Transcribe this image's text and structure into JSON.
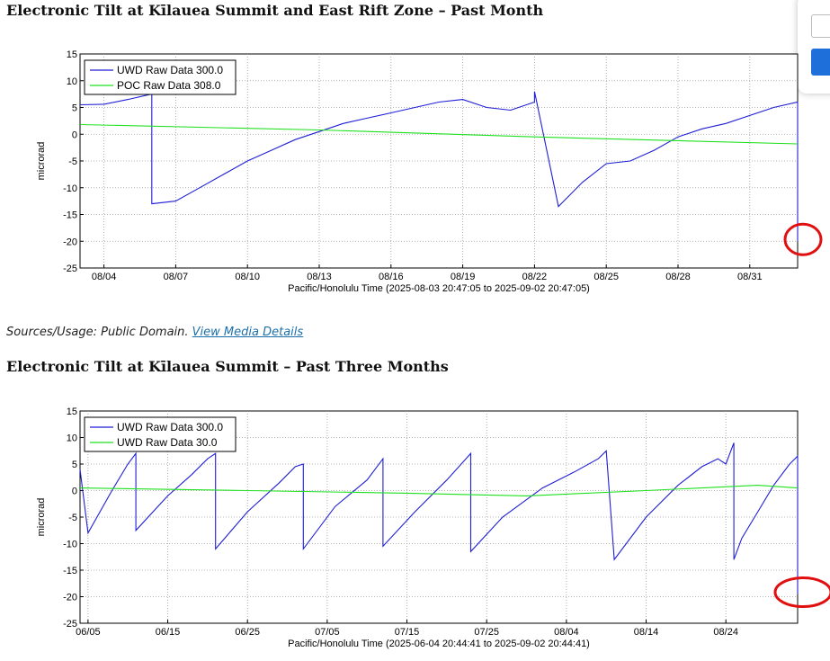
{
  "charts_page": {
    "title1": "Electronic Tilt at Kīlauea Summit and East Rift Zone – Past Month",
    "title2": "Electronic Tilt at Kīlauea Summit – Past Three Months",
    "sources_prefix": "Sources/Usage: Public Domain.",
    "sources_link": "View Media Details"
  },
  "colors": {
    "blue_series": "#1f1fd6",
    "green_series": "#1fe01f",
    "highlight": "#e01010",
    "link": "#1a6faa",
    "side_button": "#1e6fd9"
  },
  "chart_data": [
    {
      "type": "line",
      "title": "Electronic Tilt at Kīlauea Summit and East Rift Zone – Past Month",
      "xlabel": "Pacific/Honolulu Time (2025-08-03 20:47:05 to 2025-09-02 20:47:05)",
      "ylabel": "microrad",
      "xlim": [
        "2025-08-03",
        "2025-09-02"
      ],
      "ylim": [
        -25,
        15
      ],
      "x_ticks": [
        "08/04",
        "08/07",
        "08/10",
        "08/13",
        "08/16",
        "08/19",
        "08/22",
        "08/25",
        "08/28",
        "08/31"
      ],
      "y_ticks": [
        "15",
        "10",
        "5",
        "0",
        "-5",
        "-10",
        "-15",
        "-20",
        "-25"
      ],
      "grid": true,
      "legend_position": "top-left",
      "annotation": "red circle around final data point",
      "series": [
        {
          "name": "UWD Raw Data 300.0",
          "color": "#1f1fd6",
          "points": [
            [
              "2025-08-03",
              5.5
            ],
            [
              "2025-08-04",
              5.6
            ],
            [
              "2025-08-05",
              6.5
            ],
            [
              "2025-08-06",
              7.5
            ],
            [
              "2025-08-06",
              -13.0
            ],
            [
              "2025-08-07",
              -12.5
            ],
            [
              "2025-08-08",
              -10.0
            ],
            [
              "2025-08-09",
              -7.5
            ],
            [
              "2025-08-10",
              -5.0
            ],
            [
              "2025-08-11",
              -3.0
            ],
            [
              "2025-08-12",
              -1.0
            ],
            [
              "2025-08-13",
              0.5
            ],
            [
              "2025-08-14",
              2.0
            ],
            [
              "2025-08-15",
              3.0
            ],
            [
              "2025-08-16",
              4.0
            ],
            [
              "2025-08-17",
              5.0
            ],
            [
              "2025-08-18",
              6.0
            ],
            [
              "2025-08-19",
              6.5
            ],
            [
              "2025-08-20",
              5.0
            ],
            [
              "2025-08-21",
              4.5
            ],
            [
              "2025-08-22",
              6.0
            ],
            [
              "2025-08-22",
              8.0
            ],
            [
              "2025-08-23",
              -13.5
            ],
            [
              "2025-08-24",
              -9.0
            ],
            [
              "2025-08-25",
              -5.5
            ],
            [
              "2025-08-26",
              -5.0
            ],
            [
              "2025-08-27",
              -3.0
            ],
            [
              "2025-08-28",
              -0.5
            ],
            [
              "2025-08-29",
              1.0
            ],
            [
              "2025-08-30",
              2.0
            ],
            [
              "2025-08-31",
              3.5
            ],
            [
              "2025-09-01",
              5.0
            ],
            [
              "2025-09-02",
              6.0
            ],
            [
              "2025-09-02",
              -20.0
            ]
          ]
        },
        {
          "name": "POC Raw Data 308.0",
          "color": "#1fe01f",
          "points": [
            [
              "2025-08-03",
              1.8
            ],
            [
              "2025-08-13",
              0.8
            ],
            [
              "2025-08-22",
              -0.5
            ],
            [
              "2025-09-02",
              -1.8
            ]
          ]
        }
      ]
    },
    {
      "type": "line",
      "title": "Electronic Tilt at Kīlauea Summit – Past Three Months",
      "xlabel": "Pacific/Honolulu Time (2025-06-04 20:44:41 to 2025-09-02 20:44:41)",
      "ylabel": "microrad",
      "xlim": [
        "2025-06-04",
        "2025-09-02"
      ],
      "ylim": [
        -25,
        15
      ],
      "x_ticks": [
        "06/05",
        "06/15",
        "06/25",
        "07/05",
        "07/15",
        "07/25",
        "08/04",
        "08/14",
        "08/24"
      ],
      "y_ticks": [
        "15",
        "10",
        "5",
        "0",
        "-5",
        "-10",
        "-15",
        "-20",
        "-25"
      ],
      "grid": true,
      "legend_position": "top-left",
      "annotation": "red circle around final data point",
      "series": [
        {
          "name": "UWD Raw Data 300.0",
          "color": "#1f1fd6",
          "points": [
            [
              "2025-06-04",
              4.0
            ],
            [
              "2025-06-05",
              -8.0
            ],
            [
              "2025-06-08",
              0.0
            ],
            [
              "2025-06-10",
              5.0
            ],
            [
              "2025-06-11",
              7.0
            ],
            [
              "2025-06-11",
              -7.5
            ],
            [
              "2025-06-15",
              -1.0
            ],
            [
              "2025-06-18",
              3.0
            ],
            [
              "2025-06-20",
              6.0
            ],
            [
              "2025-06-21",
              7.0
            ],
            [
              "2025-06-21",
              -11.0
            ],
            [
              "2025-06-25",
              -4.0
            ],
            [
              "2025-06-29",
              1.5
            ],
            [
              "2025-07-01",
              4.5
            ],
            [
              "2025-07-02",
              5.0
            ],
            [
              "2025-07-02",
              -11.0
            ],
            [
              "2025-07-06",
              -3.0
            ],
            [
              "2025-07-10",
              2.0
            ],
            [
              "2025-07-12",
              6.0
            ],
            [
              "2025-07-12",
              -10.5
            ],
            [
              "2025-07-16",
              -4.0
            ],
            [
              "2025-07-20",
              2.0
            ],
            [
              "2025-07-23",
              7.0
            ],
            [
              "2025-07-23",
              -11.5
            ],
            [
              "2025-07-27",
              -5.0
            ],
            [
              "2025-08-01",
              0.5
            ],
            [
              "2025-08-05",
              3.5
            ],
            [
              "2025-08-08",
              6.0
            ],
            [
              "2025-08-09",
              7.5
            ],
            [
              "2025-08-10",
              -13.0
            ],
            [
              "2025-08-14",
              -5.0
            ],
            [
              "2025-08-18",
              1.0
            ],
            [
              "2025-08-21",
              4.5
            ],
            [
              "2025-08-23",
              6.0
            ],
            [
              "2025-08-24",
              5.0
            ],
            [
              "2025-08-25",
              9.0
            ],
            [
              "2025-08-25",
              -13.0
            ],
            [
              "2025-08-26",
              -9.0
            ],
            [
              "2025-08-28",
              -4.0
            ],
            [
              "2025-08-30",
              1.0
            ],
            [
              "2025-09-01",
              5.0
            ],
            [
              "2025-09-02",
              6.5
            ],
            [
              "2025-09-02",
              -19.5
            ]
          ]
        },
        {
          "name": "UWD Raw Data 30.0",
          "color": "#1fe01f",
          "points": [
            [
              "2025-06-04",
              0.5
            ],
            [
              "2025-06-25",
              0.0
            ],
            [
              "2025-07-15",
              -0.5
            ],
            [
              "2025-07-30",
              -1.0
            ],
            [
              "2025-08-14",
              0.0
            ],
            [
              "2025-08-28",
              1.0
            ],
            [
              "2025-09-02",
              0.5
            ]
          ]
        }
      ]
    }
  ]
}
